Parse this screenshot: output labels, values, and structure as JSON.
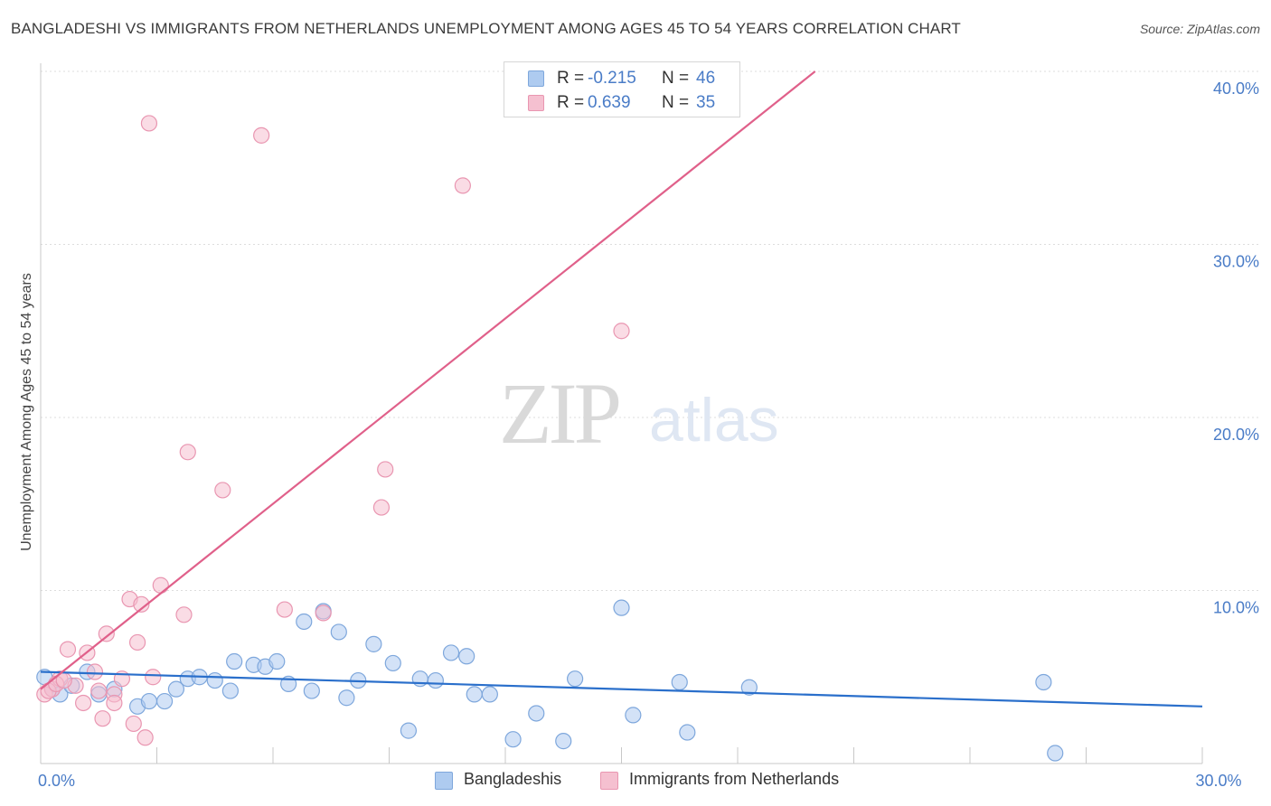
{
  "title": "BANGLADESHI VS IMMIGRANTS FROM NETHERLANDS UNEMPLOYMENT AMONG AGES 45 TO 54 YEARS CORRELATION CHART",
  "source": "Source: ZipAtlas.com",
  "watermark": {
    "zip": "ZIP",
    "atlas": "atlas"
  },
  "legend": {
    "rows": [
      {
        "r_label": "R =",
        "r_value": "-0.215",
        "n_label": "N =",
        "n_value": "46"
      },
      {
        "r_label": "R =",
        "r_value": "0.639",
        "n_label": "N =",
        "n_value": "35"
      }
    ]
  },
  "colors": {
    "blue_fill": "#aecbf0",
    "blue_stroke": "#7ea7dc",
    "blue_line": "#2a6fcb",
    "pink_fill": "#f5c0d0",
    "pink_stroke": "#e996b1",
    "pink_line": "#e0608a",
    "grid": "#dddddd",
    "tick_text": "#4a7cc7"
  },
  "chart_data": {
    "type": "scatter",
    "title": "BANGLADESHI VS IMMIGRANTS FROM NETHERLANDS UNEMPLOYMENT AMONG AGES 45 TO 54 YEARS CORRELATION CHART",
    "xlabel": "",
    "ylabel": "Unemployment Among Ages 45 to 54 years",
    "xlim": [
      0,
      30
    ],
    "ylim": [
      0,
      40
    ],
    "x_tick_labels": [
      {
        "value": 0,
        "label": "0.0%"
      },
      {
        "value": 30,
        "label": "30.0%"
      }
    ],
    "x_minor_ticks": [
      3,
      6,
      9,
      12,
      15,
      18,
      21,
      24,
      27,
      30
    ],
    "y_ticks": [
      {
        "value": 10,
        "label": "10.0%"
      },
      {
        "value": 20,
        "label": "20.0%"
      },
      {
        "value": 30,
        "label": "30.0%"
      },
      {
        "value": 40,
        "label": "40.0%"
      }
    ],
    "series": [
      {
        "name": "Bangladeshis",
        "color": "blue",
        "trend": {
          "x0": 0,
          "y0": 5.3,
          "x1": 30,
          "y1": 3.3
        },
        "points": [
          [
            0.1,
            5.0
          ],
          [
            0.3,
            4.3
          ],
          [
            0.5,
            4.0
          ],
          [
            0.8,
            4.5
          ],
          [
            1.2,
            5.3
          ],
          [
            1.5,
            4.0
          ],
          [
            1.9,
            4.3
          ],
          [
            2.5,
            3.3
          ],
          [
            2.8,
            3.6
          ],
          [
            3.2,
            3.6
          ],
          [
            3.5,
            4.3
          ],
          [
            3.8,
            4.9
          ],
          [
            4.1,
            5.0
          ],
          [
            4.5,
            4.8
          ],
          [
            4.9,
            4.2
          ],
          [
            5.0,
            5.9
          ],
          [
            5.5,
            5.7
          ],
          [
            5.8,
            5.6
          ],
          [
            6.1,
            5.9
          ],
          [
            6.4,
            4.6
          ],
          [
            6.8,
            8.2
          ],
          [
            7.0,
            4.2
          ],
          [
            7.3,
            8.8
          ],
          [
            7.7,
            7.6
          ],
          [
            7.9,
            3.8
          ],
          [
            8.2,
            4.8
          ],
          [
            8.6,
            6.9
          ],
          [
            9.1,
            5.8
          ],
          [
            9.5,
            1.9
          ],
          [
            9.8,
            4.9
          ],
          [
            10.2,
            4.8
          ],
          [
            10.6,
            6.4
          ],
          [
            11.0,
            6.2
          ],
          [
            11.2,
            4.0
          ],
          [
            11.6,
            4.0
          ],
          [
            12.2,
            1.4
          ],
          [
            12.8,
            2.9
          ],
          [
            13.5,
            1.3
          ],
          [
            13.8,
            4.9
          ],
          [
            15.0,
            9.0
          ],
          [
            15.3,
            2.8
          ],
          [
            16.5,
            4.7
          ],
          [
            16.7,
            1.8
          ],
          [
            18.3,
            4.4
          ],
          [
            25.9,
            4.7
          ],
          [
            26.2,
            0.6
          ]
        ]
      },
      {
        "name": "Immigrants from Netherlands",
        "color": "pink",
        "trend": {
          "x0": 0,
          "y0": 4.3,
          "x1": 20.0,
          "y1": 40.0
        },
        "points": [
          [
            0.1,
            4.0
          ],
          [
            0.3,
            4.3
          ],
          [
            0.5,
            4.9
          ],
          [
            0.7,
            6.6
          ],
          [
            0.9,
            4.5
          ],
          [
            1.1,
            3.5
          ],
          [
            1.2,
            6.4
          ],
          [
            1.4,
            5.3
          ],
          [
            1.5,
            4.2
          ],
          [
            1.6,
            2.6
          ],
          [
            1.7,
            7.5
          ],
          [
            1.9,
            4.0
          ],
          [
            1.9,
            3.5
          ],
          [
            2.1,
            4.9
          ],
          [
            2.3,
            9.5
          ],
          [
            2.4,
            2.3
          ],
          [
            2.5,
            7.0
          ],
          [
            2.6,
            9.2
          ],
          [
            2.7,
            1.5
          ],
          [
            2.8,
            37.0
          ],
          [
            2.9,
            5.0
          ],
          [
            3.1,
            10.3
          ],
          [
            3.7,
            8.6
          ],
          [
            3.8,
            18.0
          ],
          [
            4.7,
            15.8
          ],
          [
            5.7,
            36.3
          ],
          [
            6.3,
            8.9
          ],
          [
            7.3,
            8.7
          ],
          [
            8.8,
            14.8
          ],
          [
            8.9,
            17.0
          ],
          [
            10.9,
            33.4
          ],
          [
            15.0,
            25.0
          ],
          [
            0.2,
            4.2
          ],
          [
            0.4,
            4.6
          ],
          [
            0.6,
            4.8
          ]
        ]
      }
    ]
  },
  "bottom_legend": [
    {
      "label": "Bangladeshis",
      "color": "blue"
    },
    {
      "label": "Immigrants from Netherlands",
      "color": "pink"
    }
  ]
}
